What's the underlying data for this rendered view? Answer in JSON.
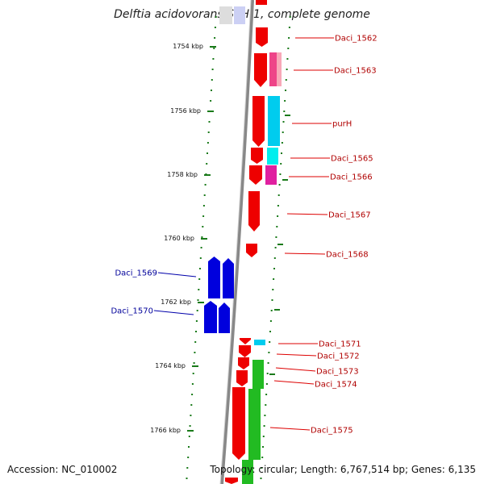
{
  "title": "Delftia acidovorans SPH-1, complete genome",
  "footer": {
    "accession": "Accession: NC_010002",
    "summary": "Topology: circular; Length: 6,767,514 bp; Genes: 6,135"
  },
  "colors": {
    "forward_gene": "#ee0000",
    "reverse_gene": "#0000dd",
    "cog_cyan": "#00ccee",
    "cog_pink": "#ee4488",
    "cog_magenta": "#e020a0",
    "cog_green": "#22bb22",
    "tick_green": "#1a7a1a",
    "backbone": "#888888"
  },
  "ticks": [
    {
      "label": "1754 kbp"
    },
    {
      "label": "1756 kbp"
    },
    {
      "label": "1758 kbp"
    },
    {
      "label": "1760 kbp"
    },
    {
      "label": "1762 kbp"
    },
    {
      "label": "1764 kbp"
    },
    {
      "label": "1766 kbp"
    }
  ],
  "genes": [
    {
      "name": "Daci_1562",
      "strand": "forward"
    },
    {
      "name": "Daci_1563",
      "strand": "forward"
    },
    {
      "name": "purH",
      "strand": "forward"
    },
    {
      "name": "Daci_1565",
      "strand": "forward"
    },
    {
      "name": "Daci_1566",
      "strand": "forward"
    },
    {
      "name": "Daci_1567",
      "strand": "forward"
    },
    {
      "name": "Daci_1568",
      "strand": "forward"
    },
    {
      "name": "Daci_1569",
      "strand": "reverse"
    },
    {
      "name": "Daci_1570",
      "strand": "reverse"
    },
    {
      "name": "Daci_1571",
      "strand": "forward"
    },
    {
      "name": "Daci_1572",
      "strand": "forward"
    },
    {
      "name": "Daci_1573",
      "strand": "forward"
    },
    {
      "name": "Daci_1574",
      "strand": "forward"
    },
    {
      "name": "Daci_1575",
      "strand": "forward"
    }
  ]
}
